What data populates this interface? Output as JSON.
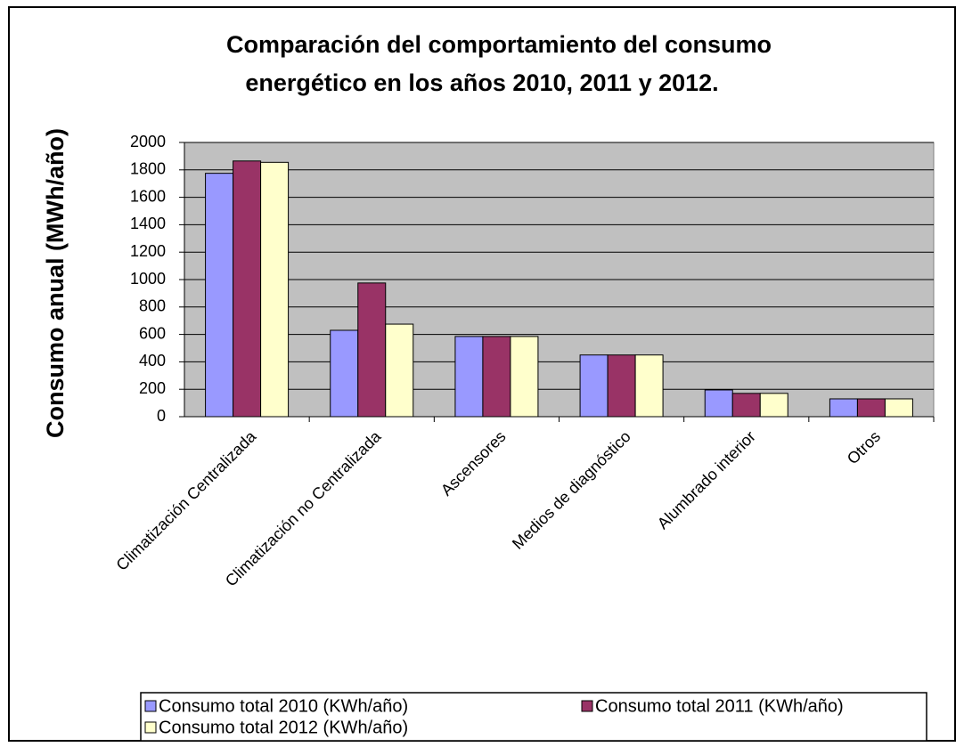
{
  "chart_data": {
    "type": "bar",
    "title": [
      "Comparación del comportamiento del consumo",
      "energético en los años 2010, 2011 y 2012."
    ],
    "y_label": "Consumo anual (MWh/año)",
    "categories": [
      "Climatización Centralizada",
      "Climatización no Centralizada",
      "Ascensores",
      "Medios de diagnóstico",
      "Alumbrado interior",
      "Otros"
    ],
    "series": [
      {
        "name": "Consumo total 2010 (KWh/año)",
        "color": "#9999ff",
        "values": [
          1775,
          630,
          585,
          450,
          195,
          130
        ]
      },
      {
        "name": "Consumo total 2011 (KWh/año)",
        "color": "#993366",
        "values": [
          1865,
          975,
          585,
          450,
          170,
          130
        ]
      },
      {
        "name": "Consumo total 2012 (KWh/año)",
        "color": "#ffffcc",
        "values": [
          1855,
          675,
          585,
          450,
          170,
          130
        ]
      }
    ],
    "ylim": [
      0,
      2000
    ],
    "yticks": [
      0,
      200,
      400,
      600,
      800,
      1000,
      1200,
      1400,
      1600,
      1800,
      2000
    ],
    "grid": true,
    "legend": "bottom"
  }
}
